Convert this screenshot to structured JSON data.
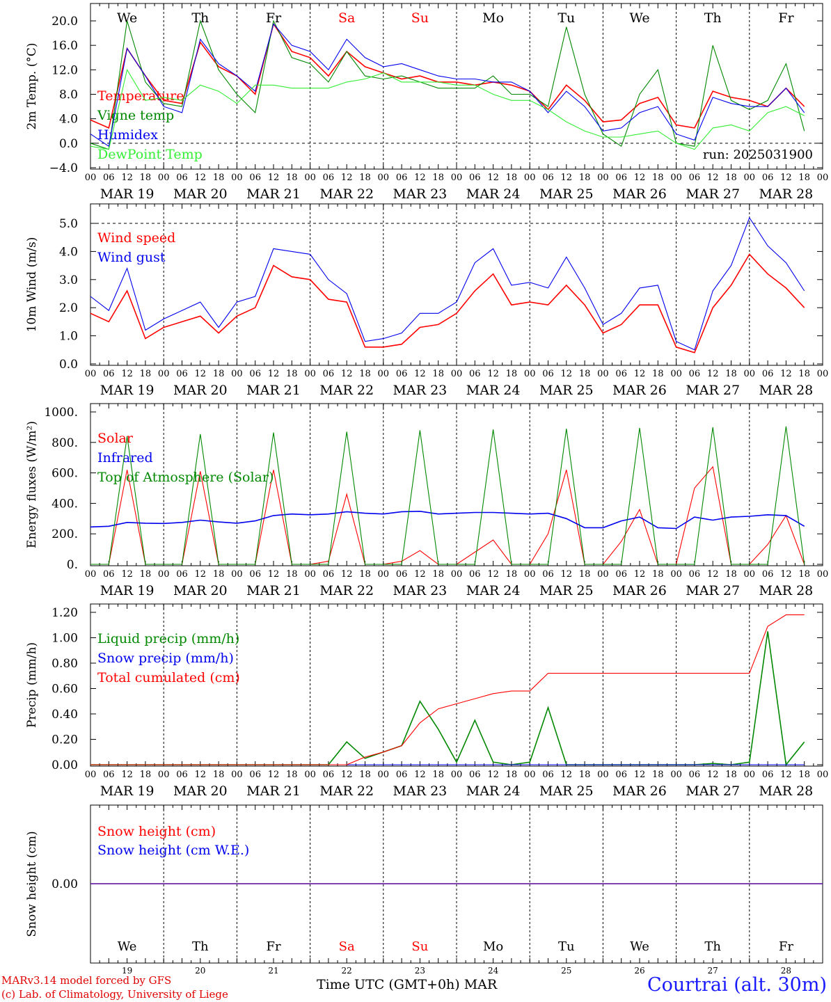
{
  "run_label": "run: 2025031900",
  "footer": {
    "model": "MARv3.14 model forced by GFS",
    "lab": "(c) Lab. of Climatology, University of Liege",
    "station": "Courtrai (alt. 30m)",
    "x_title": "Time UTC (GMT+0h) MAR"
  },
  "days": [
    "We",
    "Th",
    "Fr",
    "Sa",
    "Su",
    "Mo",
    "Tu",
    "We",
    "Th",
    "Fr"
  ],
  "dates": [
    "MAR 19",
    "MAR 20",
    "MAR 21",
    "MAR 22",
    "MAR 23",
    "MAR 24",
    "MAR 25",
    "MAR 26",
    "MAR 27",
    "MAR 28"
  ],
  "day_numbers": [
    "19",
    "20",
    "21",
    "22",
    "23",
    "24",
    "25",
    "26",
    "27",
    "28"
  ],
  "hour_ticks": [
    "00",
    "06",
    "12",
    "18"
  ],
  "colors": {
    "red": "#ff0000",
    "blue": "#0000ee",
    "green": "#008800",
    "lightgreen": "#33ee33",
    "weekend": "#ff0000"
  },
  "chart_data": [
    {
      "type": "line",
      "ylabel": "2m Temp. (°C)",
      "ylim": [
        -4,
        22
      ],
      "yticks": [
        "20.0",
        "16.0",
        "12.0",
        "8.0",
        "4.0",
        "0.0",
        "−4.0"
      ],
      "x_hours_from_mar19_00": [
        0,
        6,
        12,
        18,
        24,
        30,
        36,
        42,
        48,
        54,
        60,
        66,
        72,
        78,
        84,
        90,
        96,
        102,
        108,
        114,
        120,
        126,
        132,
        138,
        144,
        150,
        156,
        162,
        168,
        174,
        180,
        186,
        192,
        198,
        204,
        210,
        216,
        222,
        228,
        234
      ],
      "series": [
        {
          "name": "Temperature",
          "color": "red",
          "values": [
            3.8,
            2.5,
            15.5,
            11,
            7,
            6.5,
            16.5,
            12.5,
            11,
            8,
            19.5,
            15,
            14,
            11,
            15,
            12.5,
            11.5,
            10.5,
            11,
            10,
            10,
            9.5,
            10,
            9.5,
            8.5,
            5.5,
            9.5,
            7,
            3.5,
            3.8,
            6.5,
            7.5,
            3,
            2.5,
            8.5,
            7.5,
            7,
            6,
            9,
            6
          ]
        },
        {
          "name": "Vigne temp",
          "color": "green",
          "values": [
            0,
            -1,
            20,
            10,
            6.5,
            6,
            20,
            12,
            8,
            5,
            20,
            14,
            13,
            10,
            15,
            11,
            10.5,
            11,
            10,
            9,
            9,
            9,
            11,
            8,
            8,
            6,
            19,
            8,
            1.5,
            -0.5,
            8,
            12,
            0,
            -0.5,
            16,
            7,
            5.5,
            7,
            13,
            2
          ]
        },
        {
          "name": "Humidex",
          "color": "blue",
          "values": [
            1.5,
            -0.5,
            15.5,
            11,
            6,
            5,
            17,
            13,
            11,
            8.5,
            19.5,
            16,
            15,
            12,
            17,
            14,
            12.5,
            13,
            12,
            11,
            10.5,
            10.5,
            10,
            10,
            8.5,
            5,
            8.5,
            6,
            2,
            2.5,
            5,
            6,
            1.5,
            0.5,
            7.5,
            6.5,
            6,
            6,
            9,
            5
          ]
        },
        {
          "name": "DewPoint Temp",
          "color": "lightgreen",
          "values": [
            -0.5,
            -1,
            12,
            7,
            7.5,
            7,
            9.5,
            8.5,
            6.5,
            9.5,
            9.5,
            9,
            9,
            9,
            10,
            10.5,
            11.5,
            10,
            10,
            10,
            9.5,
            9.5,
            8,
            7,
            7,
            5.5,
            3.5,
            2,
            1,
            1,
            1.5,
            2,
            0,
            -1,
            2.5,
            3,
            2,
            5,
            6,
            4.5
          ]
        }
      ]
    },
    {
      "type": "line",
      "ylabel": "10m Wind (m/s)",
      "ylim": [
        0,
        5.5
      ],
      "yticks": [
        "5.0",
        "4.0",
        "3.0",
        "2.0",
        "1.0",
        "0.0"
      ],
      "x_hours_from_mar19_00": [
        0,
        6,
        12,
        18,
        24,
        30,
        36,
        42,
        48,
        54,
        60,
        66,
        72,
        78,
        84,
        90,
        96,
        102,
        108,
        114,
        120,
        126,
        132,
        138,
        144,
        150,
        156,
        162,
        168,
        174,
        180,
        186,
        192,
        198,
        204,
        210,
        216,
        222,
        228,
        234
      ],
      "series": [
        {
          "name": "Wind speed",
          "color": "red",
          "values": [
            1.8,
            1.5,
            2.6,
            0.9,
            1.3,
            1.5,
            1.7,
            1.1,
            1.7,
            2,
            3.5,
            3.1,
            3,
            2.3,
            2.2,
            0.6,
            0.6,
            0.7,
            1.3,
            1.4,
            1.8,
            2.6,
            3.2,
            2.1,
            2.2,
            2.1,
            2.8,
            2.1,
            1.1,
            1.4,
            2.1,
            2.1,
            0.6,
            0.4,
            2,
            2.8,
            3.9,
            3.2,
            2.7,
            2
          ]
        },
        {
          "name": "Wind gust",
          "color": "blue",
          "values": [
            2.4,
            1.9,
            3.4,
            1.2,
            1.6,
            1.9,
            2.2,
            1.3,
            2.2,
            2.4,
            4.1,
            4,
            3.9,
            3,
            2.5,
            0.8,
            0.9,
            1.1,
            1.8,
            1.8,
            2.2,
            3.6,
            4.1,
            2.8,
            2.9,
            2.7,
            3.8,
            2.7,
            1.4,
            1.8,
            2.7,
            2.8,
            0.8,
            0.5,
            2.6,
            3.5,
            5.2,
            4.2,
            3.6,
            2.6
          ]
        }
      ]
    },
    {
      "type": "line",
      "ylabel": "Energy fluxes (W/m²)",
      "ylim": [
        0,
        1000
      ],
      "yticks": [
        "1000.",
        "800.",
        "600.",
        "400.",
        "200.",
        "0."
      ],
      "x_hours_from_mar19_00": [
        0,
        6,
        12,
        18,
        24,
        30,
        36,
        42,
        48,
        54,
        60,
        66,
        72,
        78,
        84,
        90,
        96,
        102,
        108,
        114,
        120,
        126,
        132,
        138,
        144,
        150,
        156,
        162,
        168,
        174,
        180,
        186,
        192,
        198,
        204,
        210,
        216,
        222,
        228,
        234
      ],
      "series": [
        {
          "name": "Solar",
          "color": "red",
          "values": [
            0,
            0,
            620,
            0,
            0,
            0,
            610,
            0,
            0,
            0,
            620,
            0,
            0,
            20,
            460,
            0,
            0,
            20,
            90,
            0,
            0,
            80,
            160,
            0,
            0,
            200,
            620,
            0,
            0,
            150,
            360,
            0,
            0,
            500,
            640,
            0,
            0,
            130,
            320,
            0
          ]
        },
        {
          "name": "Infrared",
          "color": "blue",
          "values": [
            245,
            250,
            275,
            270,
            268,
            275,
            290,
            278,
            270,
            285,
            320,
            330,
            325,
            330,
            345,
            335,
            330,
            345,
            348,
            330,
            335,
            340,
            340,
            335,
            330,
            335,
            300,
            240,
            240,
            285,
            310,
            240,
            235,
            310,
            290,
            310,
            315,
            325,
            320,
            250
          ]
        },
        {
          "name": "Top of Atmosphere (Solar)",
          "color": "green",
          "values": [
            0,
            0,
            840,
            0,
            0,
            0,
            855,
            0,
            0,
            0,
            865,
            0,
            0,
            0,
            870,
            0,
            0,
            0,
            880,
            0,
            0,
            0,
            885,
            0,
            0,
            0,
            890,
            0,
            0,
            0,
            895,
            0,
            0,
            0,
            900,
            0,
            0,
            0,
            905,
            0
          ]
        }
      ]
    },
    {
      "type": "line",
      "ylabel": "Precip (mm/h)",
      "ylim": [
        0,
        1.2
      ],
      "yticks": [
        "1.20",
        "1.00",
        "0.80",
        "0.60",
        "0.40",
        "0.20",
        "0.00"
      ],
      "x_hours_from_mar19_00": [
        0,
        6,
        12,
        18,
        24,
        30,
        36,
        42,
        48,
        54,
        60,
        66,
        72,
        78,
        84,
        90,
        96,
        102,
        108,
        114,
        120,
        126,
        132,
        138,
        144,
        150,
        156,
        162,
        168,
        174,
        180,
        186,
        192,
        198,
        204,
        210,
        216,
        222,
        228,
        234
      ],
      "series": [
        {
          "name": "Liquid precip (mm/h)",
          "color": "green",
          "values": [
            0,
            0,
            0,
            0,
            0,
            0,
            0,
            0,
            0,
            0,
            0,
            0,
            0,
            0,
            0.18,
            0.05,
            0.1,
            0.15,
            0.5,
            0.28,
            0.02,
            0.35,
            0.02,
            0,
            0.02,
            0.45,
            0,
            0,
            0,
            0,
            0,
            0,
            0,
            0,
            0.01,
            0,
            0.02,
            1.05,
            0,
            0.18
          ]
        },
        {
          "name": "Snow precip (mm/h)",
          "color": "blue",
          "values": [
            0,
            0,
            0,
            0,
            0,
            0,
            0,
            0,
            0,
            0,
            0,
            0,
            0,
            0,
            0,
            0,
            0,
            0,
            0,
            0,
            0,
            0,
            0,
            0,
            0,
            0,
            0,
            0,
            0,
            0,
            0,
            0,
            0,
            0,
            0,
            0,
            0,
            0,
            0,
            0
          ]
        },
        {
          "name": "Total cumulated (cm)",
          "color": "red",
          "values": [
            0,
            0,
            0,
            0,
            0,
            0,
            0,
            0,
            0,
            0,
            0,
            0,
            0,
            0,
            0,
            0.06,
            0.1,
            0.15,
            0.33,
            0.44,
            0.48,
            0.52,
            0.56,
            0.58,
            0.58,
            0.72,
            0.72,
            0.72,
            0.72,
            0.72,
            0.72,
            0.72,
            0.72,
            0.72,
            0.72,
            0.72,
            0.72,
            1.09,
            1.18,
            1.18
          ]
        }
      ]
    },
    {
      "type": "line",
      "ylabel": "Snow height (cm)",
      "ylim": [
        -1,
        1
      ],
      "yticks": [
        "0.00"
      ],
      "x_hours_from_mar19_00": [
        0,
        240
      ],
      "series": [
        {
          "name": "Snow height (cm)",
          "color": "red",
          "values": [
            0,
            0
          ]
        },
        {
          "name": "Snow height (cm W.E.)",
          "color": "blue",
          "values": [
            0,
            0
          ]
        }
      ]
    }
  ]
}
